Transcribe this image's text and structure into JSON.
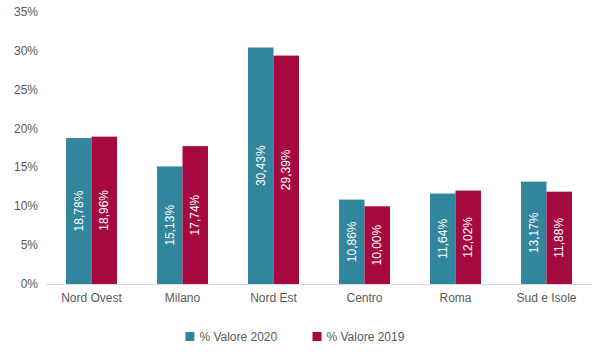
{
  "chart_data": {
    "type": "bar",
    "categories": [
      "Nord Ovest",
      "Milano",
      "Nord Est",
      "Centro",
      "Roma",
      "Sud e Isole"
    ],
    "series": [
      {
        "name": "% Valore 2020",
        "color": "#31859c",
        "values": [
          18.78,
          15.13,
          30.43,
          10.86,
          11.64,
          13.17
        ],
        "value_labels": [
          "18,78%",
          "15,13%",
          "30,43%",
          "10,86%",
          "11,64%",
          "13,17%"
        ]
      },
      {
        "name": "% Valore 2019",
        "color": "#a5093f",
        "values": [
          18.96,
          17.74,
          29.39,
          10.0,
          12.02,
          11.88
        ],
        "value_labels": [
          "18,96%",
          "17,74%",
          "29,39%",
          "10,00%",
          "12,02%",
          "11,88%"
        ]
      }
    ],
    "ylim": [
      0,
      35
    ],
    "yticks": [
      {
        "value": 0,
        "label": "0%"
      },
      {
        "value": 5,
        "label": "5%"
      },
      {
        "value": 10,
        "label": "10%"
      },
      {
        "value": 15,
        "label": "15%"
      },
      {
        "value": 20,
        "label": "20%"
      },
      {
        "value": 25,
        "label": "25%"
      },
      {
        "value": 30,
        "label": "30%"
      },
      {
        "value": 35,
        "label": "35%"
      }
    ],
    "grid": false,
    "legend": "bottom",
    "data_labels": true
  }
}
